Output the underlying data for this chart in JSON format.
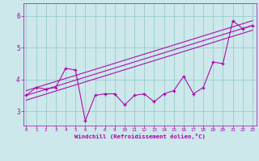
{
  "title": "",
  "xlabel": "Windchill (Refroidissement éolien,°C)",
  "ylabel": "",
  "bg_color": "#cce8ea",
  "line_color": "#aa00aa",
  "grid_color": "#99cccc",
  "x_ticks": [
    0,
    1,
    2,
    3,
    4,
    5,
    6,
    7,
    8,
    9,
    10,
    11,
    12,
    13,
    14,
    15,
    16,
    17,
    18,
    19,
    20,
    21,
    22,
    23
  ],
  "y_ticks": [
    3,
    4,
    5,
    6
  ],
  "ylim": [
    2.55,
    6.4
  ],
  "xlim": [
    -0.3,
    23.4
  ],
  "data_y": [
    3.5,
    3.75,
    3.7,
    3.75,
    4.35,
    4.3,
    2.7,
    3.5,
    3.55,
    3.55,
    3.2,
    3.5,
    3.55,
    3.3,
    3.55,
    3.65,
    4.1,
    3.55,
    3.75,
    4.55,
    4.5,
    5.85,
    5.6,
    5.7
  ],
  "reg_lines": [
    [
      3.35,
      5.55
    ],
    [
      3.5,
      5.7
    ],
    [
      3.65,
      5.85
    ]
  ]
}
